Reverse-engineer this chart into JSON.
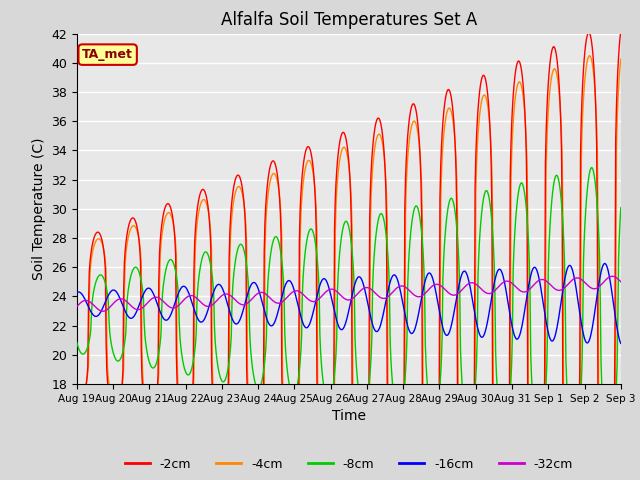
{
  "title": "Alfalfa Soil Temperatures Set A",
  "xlabel": "Time",
  "ylabel": "Soil Temperature (C)",
  "ylim": [
    18,
    42
  ],
  "series_colors": {
    "-2cm": "#ff0000",
    "-4cm": "#ff8800",
    "-8cm": "#00cc00",
    "-16cm": "#0000ff",
    "-32cm": "#cc00cc"
  },
  "legend_entries": [
    "-2cm",
    "-4cm",
    "-8cm",
    "-16cm",
    "-32cm"
  ],
  "annotation_text": "TA_met",
  "annotation_bg": "#ffff99",
  "annotation_border": "#cc0000",
  "bg_color": "#e8e8e8",
  "grid_color": "#ffffff",
  "xtick_labels": [
    "Aug 19",
    "Aug 20",
    "Aug 21",
    "Aug 22",
    "Aug 23",
    "Aug 24",
    "Aug 25",
    "Aug 26",
    "Aug 27",
    "Aug 28",
    "Aug 29",
    "Aug 30",
    "Aug 31",
    "Sep 1",
    "Sep 2",
    "Sep 3"
  ],
  "n_days": 15.5,
  "points_per_day": 48,
  "fig_width": 6.4,
  "fig_height": 4.8,
  "dpi": 100
}
